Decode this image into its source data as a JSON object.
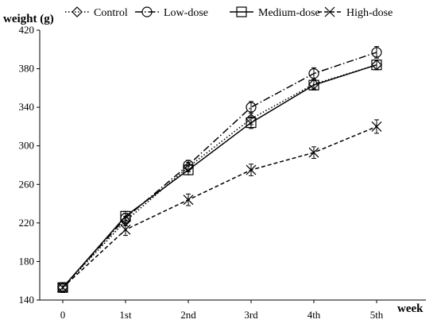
{
  "chart_data": {
    "type": "line",
    "ylabel": "weight (g)",
    "xlabel": "week",
    "categories": [
      "0",
      "1st",
      "2nd",
      "3rd",
      "4th",
      "5th"
    ],
    "ylim": [
      140,
      420
    ],
    "yticks": [
      140,
      180,
      220,
      260,
      300,
      340,
      380,
      420
    ],
    "grid": false,
    "legend_position": "top",
    "error_bars": true,
    "series": [
      {
        "name": "Control",
        "values": [
          153,
          222,
          278,
          328,
          364,
          384
        ],
        "err": [
          5,
          5,
          5,
          6,
          5,
          5
        ],
        "marker": "diamond",
        "line": "dotted",
        "color": "#000000"
      },
      {
        "name": "Low-dose",
        "values": [
          153,
          225,
          280,
          340,
          375,
          397
        ],
        "err": [
          5,
          5,
          5,
          6,
          6,
          6
        ],
        "marker": "circle",
        "line": "dash-dot",
        "color": "#000000"
      },
      {
        "name": "Medium-dose",
        "values": [
          153,
          227,
          275,
          324,
          363,
          384
        ],
        "err": [
          5,
          5,
          5,
          6,
          5,
          5
        ],
        "marker": "square",
        "line": "solid",
        "color": "#000000"
      },
      {
        "name": "High-dose",
        "values": [
          153,
          213,
          244,
          275,
          293,
          320
        ],
        "err": [
          5,
          6,
          6,
          6,
          6,
          7
        ],
        "marker": "x",
        "line": "dashed",
        "color": "#000000"
      }
    ]
  }
}
